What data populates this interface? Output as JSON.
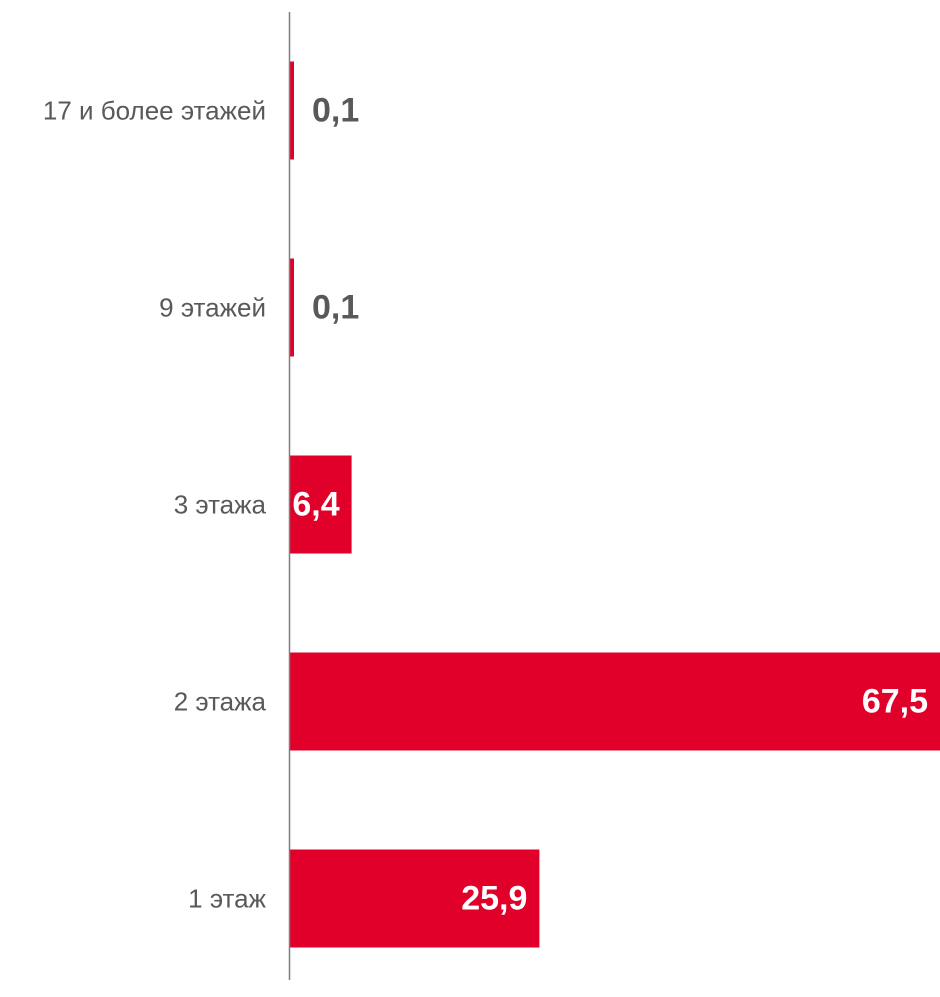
{
  "chart_data": {
    "type": "bar",
    "orientation": "horizontal",
    "categories": [
      "17 и более этажей",
      "9 этажей",
      "3 этажа",
      "2 этажа",
      "1 этаж"
    ],
    "values": [
      0.1,
      0.1,
      6.4,
      67.5,
      25.9
    ],
    "value_labels": [
      "0,1",
      "0,1",
      "6,4",
      "67,5",
      "25,9"
    ],
    "xlim": [
      0,
      67.5
    ],
    "grid": false,
    "legend": "none",
    "bar_color": "#e00029",
    "axis_color": "#7f7f7f",
    "category_label_color": "#595959",
    "value_label_outside_color": "#595959",
    "value_label_inside_color": "#ffffff"
  }
}
